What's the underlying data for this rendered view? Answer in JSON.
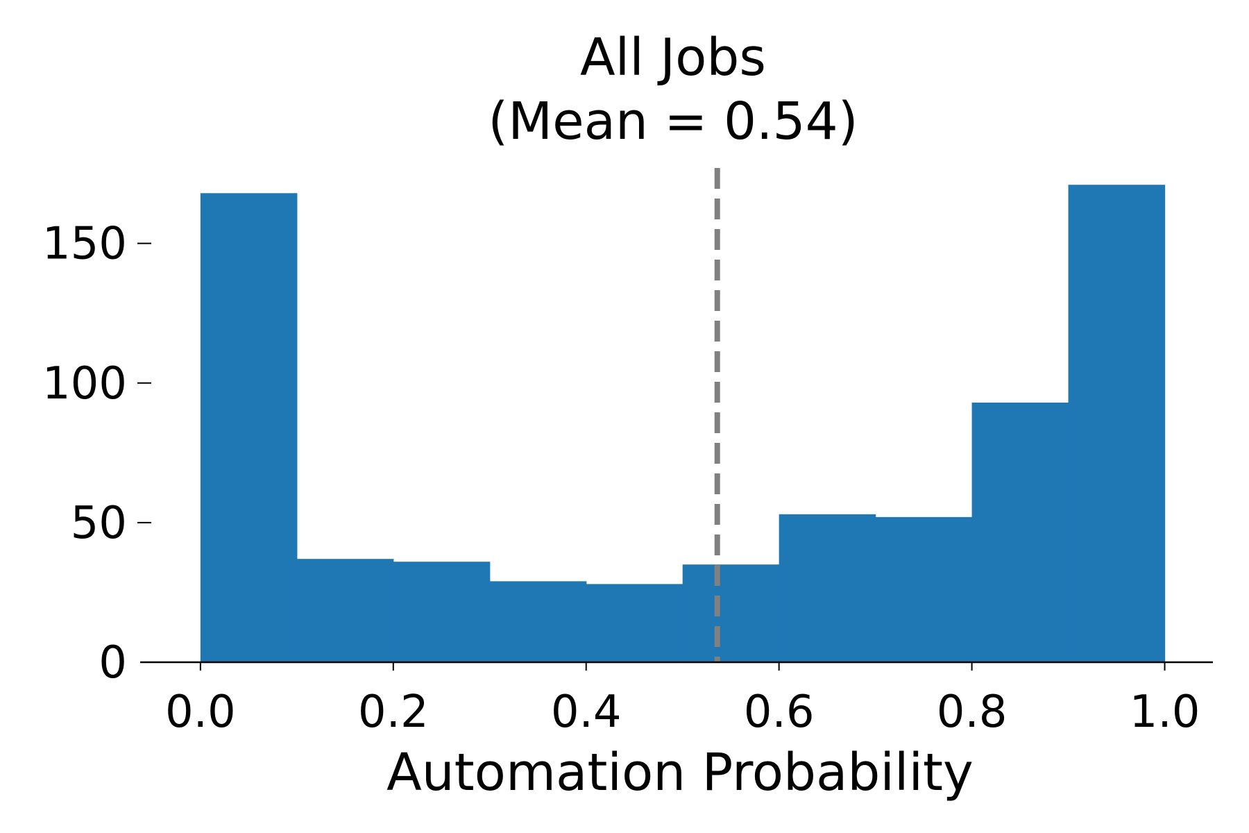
{
  "chart_data": {
    "type": "bar",
    "title_lines": [
      "All Jobs",
      "(Mean = 0.54)"
    ],
    "xlabel": "Automation Probability",
    "ylabel": "",
    "bin_edges": [
      0.0,
      0.1,
      0.2,
      0.3,
      0.4,
      0.5,
      0.6,
      0.7,
      0.8,
      0.9,
      1.0
    ],
    "values": [
      168,
      37,
      36,
      29,
      28,
      35,
      53,
      52,
      93,
      171
    ],
    "xlim": [
      -0.0625,
      1.05
    ],
    "ylim": [
      0,
      180
    ],
    "x_ticks": [
      0.0,
      0.2,
      0.4,
      0.6,
      0.8,
      1.0
    ],
    "x_tick_labels": [
      "0.0",
      "0.2",
      "0.4",
      "0.6",
      "0.8",
      "1.0"
    ],
    "y_ticks": [
      0,
      50,
      100,
      150
    ],
    "y_tick_labels": [
      "0",
      "50",
      "100",
      "150"
    ],
    "mean_line": {
      "x": 0.536,
      "style": "dashed",
      "color": "#808080"
    },
    "bar_color": "#1f77b4",
    "grid": false,
    "legend": "none"
  }
}
